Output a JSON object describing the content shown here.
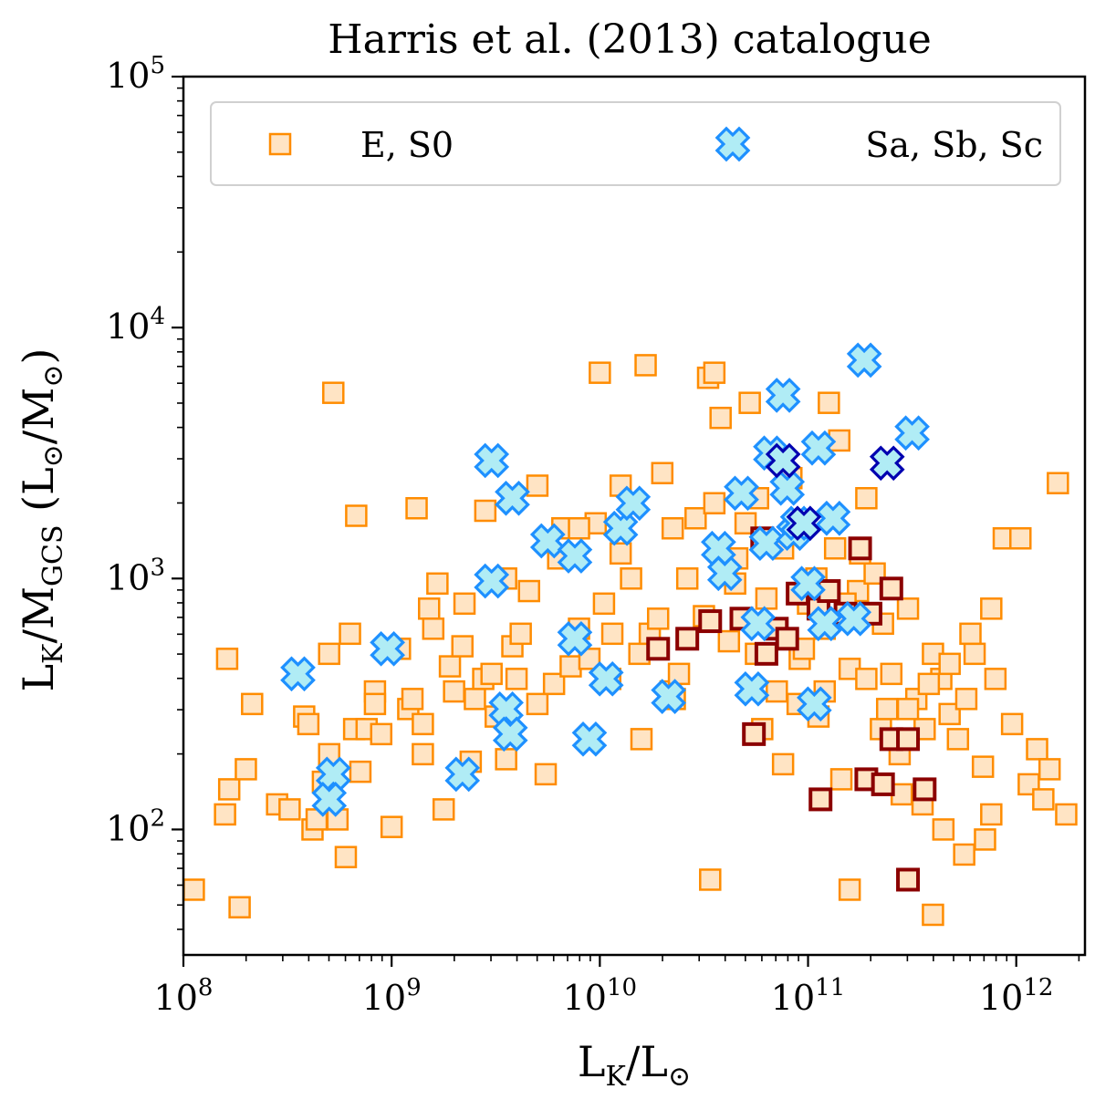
{
  "chart_data": {
    "type": "scatter",
    "title": "Harris et al. (2013) catalogue",
    "xlabel": {
      "main": "L",
      "sub": "K",
      "sep": "/",
      "main2": "L",
      "sub2": "⊙"
    },
    "ylabel": {
      "main": "L",
      "sub": "K",
      "sep": "/",
      "main2": "M",
      "sub2": "GCS",
      "units_open": " (L",
      "units_sub": "⊙",
      "units_mid": "/M",
      "units_sub2": "⊙",
      "units_close": ")"
    },
    "xscale": "log",
    "yscale": "log",
    "xlim_log10": [
      8.0,
      12.33
    ],
    "ylim_log10": [
      1.5,
      5.0
    ],
    "x_ticks": [
      {
        "base": "10",
        "exp": "8",
        "log10": 8
      },
      {
        "base": "10",
        "exp": "9",
        "log10": 9
      },
      {
        "base": "10",
        "exp": "10",
        "log10": 10
      },
      {
        "base": "10",
        "exp": "11",
        "log10": 11
      },
      {
        "base": "10",
        "exp": "12",
        "log10": 12
      }
    ],
    "y_ticks": [
      {
        "base": "10",
        "exp": "2",
        "log10": 2
      },
      {
        "base": "10",
        "exp": "3",
        "log10": 3
      },
      {
        "base": "10",
        "exp": "4",
        "log10": 4
      },
      {
        "base": "10",
        "exp": "5",
        "log10": 5
      }
    ],
    "legend": {
      "placement": "top",
      "entries": [
        {
          "label": "E, S0",
          "marker": "square",
          "series": "E_S0"
        },
        {
          "label": "Sa, Sb, Sc",
          "marker": "x",
          "series": "spiral"
        }
      ]
    },
    "colors": {
      "square_edge": "#ff8c00",
      "square_fill": "#ffe4c4",
      "highlight_square_edge": "#8b0000",
      "x_edge": "#1e90ff",
      "x_fill": "#b0ecf5",
      "highlight_x_edge": "#0000b0",
      "axis": "#000000"
    },
    "series": [
      {
        "name": "E, S0",
        "marker": "square",
        "points_log10": [
          [
            8.05,
            1.76
          ],
          [
            8.21,
            2.68
          ],
          [
            8.2,
            2.06
          ],
          [
            8.22,
            2.16
          ],
          [
            8.27,
            1.69
          ],
          [
            8.3,
            2.24
          ],
          [
            8.33,
            2.5
          ],
          [
            8.45,
            2.1
          ],
          [
            8.51,
            2.08
          ],
          [
            8.58,
            2.45
          ],
          [
            8.6,
            2.42
          ],
          [
            8.62,
            2.0
          ],
          [
            8.64,
            2.04
          ],
          [
            8.67,
            2.19
          ],
          [
            8.7,
            2.3
          ],
          [
            8.72,
            3.74
          ],
          [
            8.74,
            2.04
          ],
          [
            8.78,
            1.89
          ],
          [
            8.8,
            2.78
          ],
          [
            8.82,
            2.4
          ],
          [
            8.83,
            3.25
          ],
          [
            8.85,
            2.23
          ],
          [
            8.88,
            2.4
          ],
          [
            8.92,
            2.55
          ],
          [
            8.95,
            2.38
          ],
          [
            9.0,
            2.01
          ],
          [
            9.04,
            2.72
          ],
          [
            9.08,
            2.48
          ],
          [
            9.12,
            3.28
          ],
          [
            9.15,
            2.42
          ],
          [
            9.18,
            2.88
          ],
          [
            9.22,
            2.98
          ],
          [
            9.25,
            2.08
          ],
          [
            9.28,
            2.65
          ],
          [
            9.3,
            2.55
          ],
          [
            9.34,
            2.73
          ],
          [
            9.38,
            2.27
          ],
          [
            9.4,
            2.52
          ],
          [
            9.44,
            2.6
          ],
          [
            9.48,
            2.62
          ],
          [
            9.5,
            2.45
          ],
          [
            9.55,
            2.28
          ],
          [
            9.58,
            2.73
          ],
          [
            9.62,
            2.78
          ],
          [
            9.66,
            2.95
          ],
          [
            9.7,
            2.5
          ],
          [
            9.74,
            2.22
          ],
          [
            9.78,
            2.58
          ],
          [
            9.82,
            3.2
          ],
          [
            9.86,
            2.65
          ],
          [
            9.9,
            2.8
          ],
          [
            9.95,
            2.68
          ],
          [
            9.98,
            3.22
          ],
          [
            10.02,
            2.9
          ],
          [
            10.06,
            2.78
          ],
          [
            10.1,
            3.37
          ],
          [
            10.15,
            3.0
          ],
          [
            10.19,
            2.7
          ],
          [
            10.22,
            3.85
          ],
          [
            10.24,
            2.78
          ],
          [
            10.28,
            2.84
          ],
          [
            10.3,
            3.42
          ],
          [
            10.34,
            2.55
          ],
          [
            10.38,
            2.62
          ],
          [
            10.42,
            3.0
          ],
          [
            10.46,
            3.24
          ],
          [
            10.5,
            2.85
          ],
          [
            10.52,
            3.8
          ],
          [
            10.55,
            3.82
          ],
          [
            10.58,
            3.64
          ],
          [
            10.62,
            2.75
          ],
          [
            10.66,
            3.08
          ],
          [
            10.7,
            3.22
          ],
          [
            10.72,
            3.7
          ],
          [
            10.76,
            3.32
          ],
          [
            10.8,
            2.92
          ],
          [
            10.84,
            2.8
          ],
          [
            10.88,
            3.12
          ],
          [
            10.92,
            3.4
          ],
          [
            10.96,
            2.68
          ],
          [
            11.0,
            2.9
          ],
          [
            11.04,
            3.0
          ],
          [
            11.08,
            2.55
          ],
          [
            11.1,
            3.7
          ],
          [
            11.13,
            3.12
          ],
          [
            11.16,
            2.2
          ],
          [
            11.2,
            2.64
          ],
          [
            11.24,
            2.95
          ],
          [
            11.28,
            3.32
          ],
          [
            11.32,
            3.02
          ],
          [
            11.36,
            2.82
          ],
          [
            11.4,
            2.62
          ],
          [
            11.44,
            2.3
          ],
          [
            11.48,
            2.88
          ],
          [
            11.52,
            2.52
          ],
          [
            11.56,
            2.4
          ],
          [
            11.6,
            2.7
          ],
          [
            11.64,
            2.6
          ],
          [
            11.68,
            2.46
          ],
          [
            11.72,
            2.36
          ],
          [
            11.76,
            2.52
          ],
          [
            11.8,
            2.7
          ],
          [
            11.84,
            2.25
          ],
          [
            11.88,
            2.06
          ],
          [
            11.9,
            2.6
          ],
          [
            11.94,
            3.16
          ],
          [
            11.98,
            2.42
          ],
          [
            12.02,
            3.16
          ],
          [
            12.06,
            2.18
          ],
          [
            12.1,
            2.32
          ],
          [
            12.13,
            2.12
          ],
          [
            12.16,
            2.24
          ],
          [
            12.2,
            3.38
          ],
          [
            12.24,
            2.06
          ],
          [
            10.0,
            3.82
          ],
          [
            9.9,
            3.2
          ],
          [
            9.7,
            3.37
          ],
          [
            9.45,
            3.27
          ],
          [
            9.2,
            2.8
          ],
          [
            9.1,
            2.52
          ],
          [
            9.6,
            2.6
          ],
          [
            9.8,
            3.08
          ],
          [
            10.1,
            3.1
          ],
          [
            10.35,
            3.2
          ],
          [
            10.55,
            3.3
          ],
          [
            10.65,
            2.98
          ],
          [
            10.75,
            2.7
          ],
          [
            10.85,
            2.55
          ],
          [
            10.95,
            2.5
          ],
          [
            11.05,
            2.45
          ],
          [
            11.15,
            3.55
          ],
          [
            11.25,
            3.1
          ],
          [
            11.35,
            2.4
          ],
          [
            11.45,
            2.14
          ],
          [
            11.55,
            2.1
          ],
          [
            11.65,
            2.0
          ],
          [
            11.75,
            1.9
          ],
          [
            11.85,
            1.96
          ],
          [
            11.6,
            1.66
          ],
          [
            11.2,
            1.76
          ],
          [
            10.53,
            1.8
          ],
          [
            10.36,
            2.52
          ],
          [
            10.2,
            2.36
          ],
          [
            10.05,
            2.6
          ],
          [
            9.55,
            3.0
          ],
          [
            9.35,
            2.9
          ],
          [
            9.15,
            2.3
          ],
          [
            8.92,
            2.5
          ],
          [
            8.7,
            2.7
          ],
          [
            10.78,
            2.4
          ],
          [
            10.88,
            2.26
          ],
          [
            10.98,
            2.72
          ],
          [
            11.08,
            2.8
          ],
          [
            11.18,
            2.9
          ],
          [
            11.28,
            2.6
          ],
          [
            11.38,
            2.48
          ],
          [
            11.48,
            2.48
          ],
          [
            11.58,
            2.58
          ],
          [
            11.68,
            2.66
          ],
          [
            11.78,
            2.78
          ],
          [
            11.88,
            2.88
          ]
        ]
      },
      {
        "name": "E, S0 (highlighted)",
        "marker": "square-highlight",
        "points_log10": [
          [
            10.28,
            2.72
          ],
          [
            10.42,
            2.76
          ],
          [
            10.53,
            2.83
          ],
          [
            10.68,
            2.84
          ],
          [
            10.8,
            2.7
          ],
          [
            10.85,
            2.8
          ],
          [
            10.9,
            2.76
          ],
          [
            10.95,
            2.94
          ],
          [
            11.05,
            2.88
          ],
          [
            11.1,
            2.95
          ],
          [
            11.18,
            2.86
          ],
          [
            11.25,
            3.12
          ],
          [
            11.3,
            2.86
          ],
          [
            11.4,
            2.96
          ],
          [
            10.74,
            2.38
          ],
          [
            11.06,
            2.12
          ],
          [
            11.28,
            2.2
          ],
          [
            11.36,
            2.18
          ],
          [
            11.4,
            2.36
          ],
          [
            11.48,
            2.36
          ],
          [
            11.56,
            2.16
          ],
          [
            11.48,
            1.8
          ],
          [
            10.78,
            3.16
          ]
        ]
      },
      {
        "name": "Sa, Sb, Sc",
        "marker": "x",
        "points_log10": [
          [
            8.55,
            2.62
          ],
          [
            8.72,
            2.22
          ],
          [
            8.7,
            2.12
          ],
          [
            8.98,
            2.72
          ],
          [
            9.34,
            2.22
          ],
          [
            9.48,
            2.99
          ],
          [
            9.48,
            3.47
          ],
          [
            9.58,
            3.32
          ],
          [
            9.55,
            2.48
          ],
          [
            9.57,
            2.38
          ],
          [
            9.75,
            3.15
          ],
          [
            9.88,
            3.09
          ],
          [
            9.88,
            2.76
          ],
          [
            9.95,
            2.36
          ],
          [
            10.03,
            2.6
          ],
          [
            10.1,
            3.2
          ],
          [
            10.16,
            3.3
          ],
          [
            10.33,
            2.53
          ],
          [
            10.57,
            3.12
          ],
          [
            10.6,
            3.02
          ],
          [
            10.68,
            3.34
          ],
          [
            10.73,
            2.56
          ],
          [
            10.76,
            2.82
          ],
          [
            10.8,
            3.14
          ],
          [
            10.82,
            3.5
          ],
          [
            10.88,
            3.73
          ],
          [
            10.9,
            3.36
          ],
          [
            10.93,
            3.18
          ],
          [
            10.95,
            3.22
          ],
          [
            11.0,
            2.98
          ],
          [
            11.03,
            2.5
          ],
          [
            11.05,
            3.52
          ],
          [
            11.08,
            2.82
          ],
          [
            11.12,
            3.24
          ],
          [
            11.22,
            2.84
          ],
          [
            11.27,
            3.87
          ],
          [
            11.5,
            3.58
          ]
        ]
      },
      {
        "name": "Sa, Sb, Sc (highlighted)",
        "marker": "x-highlight",
        "points_log10": [
          [
            10.88,
            3.47
          ],
          [
            10.98,
            3.22
          ],
          [
            11.38,
            3.46
          ]
        ]
      }
    ]
  }
}
